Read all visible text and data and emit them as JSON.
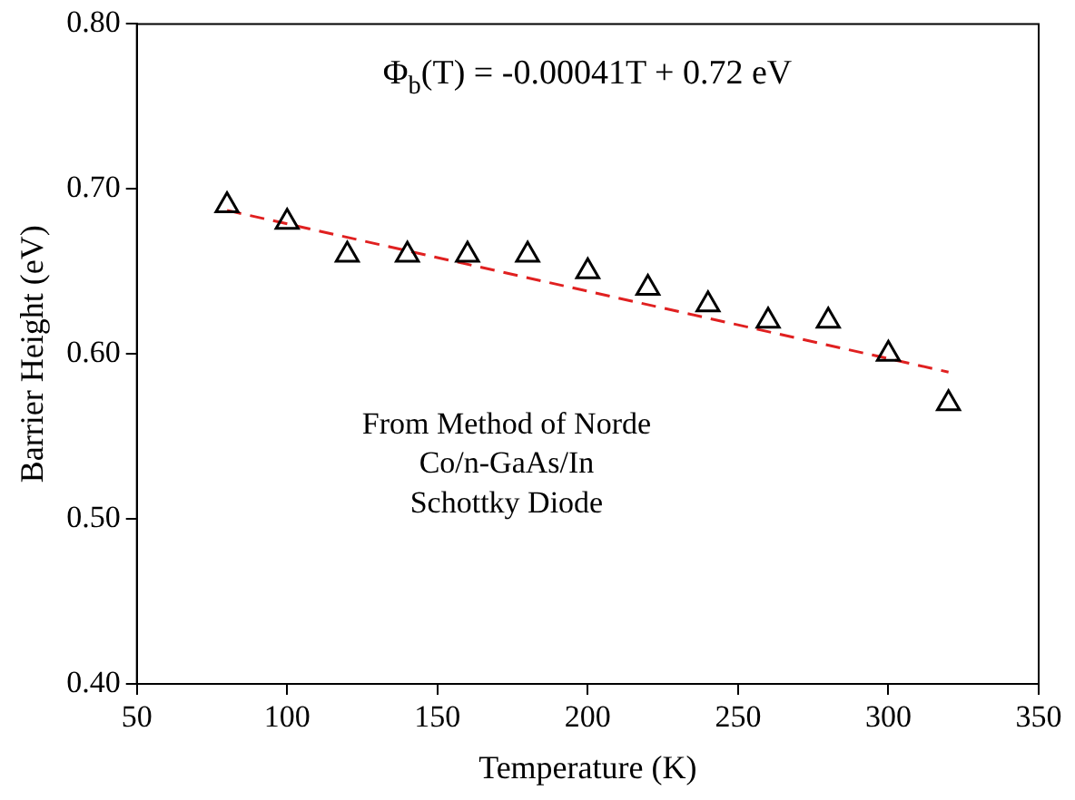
{
  "chart_data": {
    "type": "scatter",
    "xlabel": "Temperature (K)",
    "ylabel": "Barrier Height (eV)",
    "xlim": [
      50,
      350
    ],
    "xticks": [
      50,
      100,
      150,
      200,
      250,
      300,
      350
    ],
    "ylim": [
      0.4,
      0.8
    ],
    "yticks": [
      {
        "value": 0.4,
        "label": "0.40"
      },
      {
        "value": 0.5,
        "label": "0.50"
      },
      {
        "value": 0.6,
        "label": "0.60"
      },
      {
        "value": 0.7,
        "label": "0.70"
      },
      {
        "value": 0.8,
        "label": "0.80"
      }
    ],
    "grid": false,
    "legend": false,
    "marker": "triangle",
    "series": [
      {
        "color": "#000000",
        "x": [
          80,
          100,
          120,
          140,
          160,
          180,
          200,
          220,
          240,
          260,
          280,
          300,
          320
        ],
        "values": [
          0.69,
          0.68,
          0.66,
          0.66,
          0.66,
          0.66,
          0.65,
          0.64,
          0.63,
          0.62,
          0.62,
          0.6,
          0.57
        ]
      },
      {
        "type": "line",
        "color": "#e02020",
        "line_style": "dashed",
        "marker": "none",
        "x": [
          80,
          320
        ],
        "values": [
          0.687,
          0.589
        ]
      }
    ],
    "annotations": [
      "Φ$_{b}$(T) = -0.00041T + 0.72 eV",
      "From Method of Norde",
      "Co/n-GaAs/In",
      "Schottky Diode"
    ]
  }
}
